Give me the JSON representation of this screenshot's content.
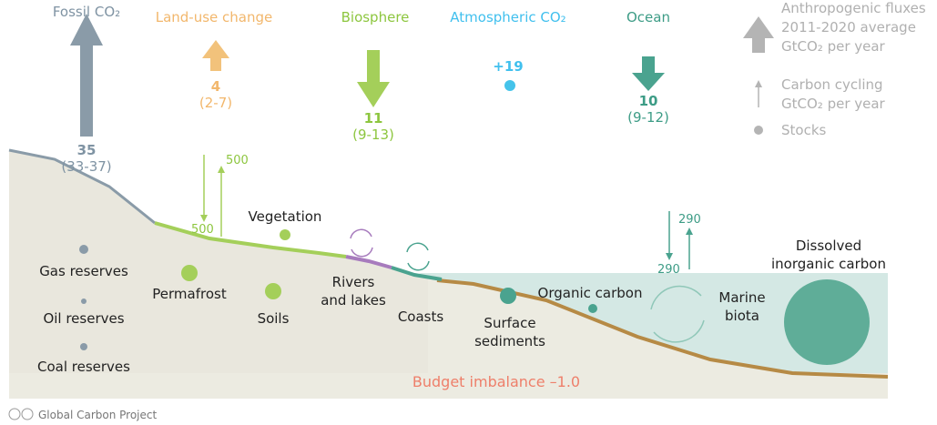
{
  "fluxes": [
    {
      "label": "Fossil CO₂",
      "value": "35",
      "range": "(33-37)"
    },
    {
      "label": "Land-use change",
      "value": "4",
      "range": "(2-7)"
    },
    {
      "label": "Biosphere",
      "value": "11",
      "range": "(9-13)"
    },
    {
      "label": "Atmospheric CO₂",
      "value": "+19"
    },
    {
      "label": "Ocean",
      "value": "10",
      "range": "(9-12)"
    }
  ],
  "legend": {
    "anthropogenic": [
      "Anthropogenic fluxes",
      "2011-2020 average",
      "GtCO₂ per year"
    ],
    "cycling": [
      "Carbon cycling",
      "GtCO₂ per year"
    ],
    "stocks": "Stocks"
  },
  "land_cycling": {
    "down": "500",
    "up": "500"
  },
  "ocean_cycling": {
    "down": "290",
    "up": "290"
  },
  "stocks": {
    "gas": "Gas reserves",
    "oil": "Oil reserves",
    "coal": "Coal reserves",
    "permafrost": "Permafrost",
    "soils": "Soils",
    "vegetation": "Vegetation",
    "rivers": [
      "Rivers",
      "and lakes"
    ],
    "coasts": "Coasts",
    "sediments": [
      "Surface",
      "sediments"
    ],
    "organic": "Organic carbon",
    "biota": [
      "Marine",
      "biota"
    ],
    "dic": [
      "Dissolved",
      "inorganic carbon"
    ]
  },
  "budget_imbalance": "Budget imbalance –1.0",
  "footer": "Global Carbon Project"
}
